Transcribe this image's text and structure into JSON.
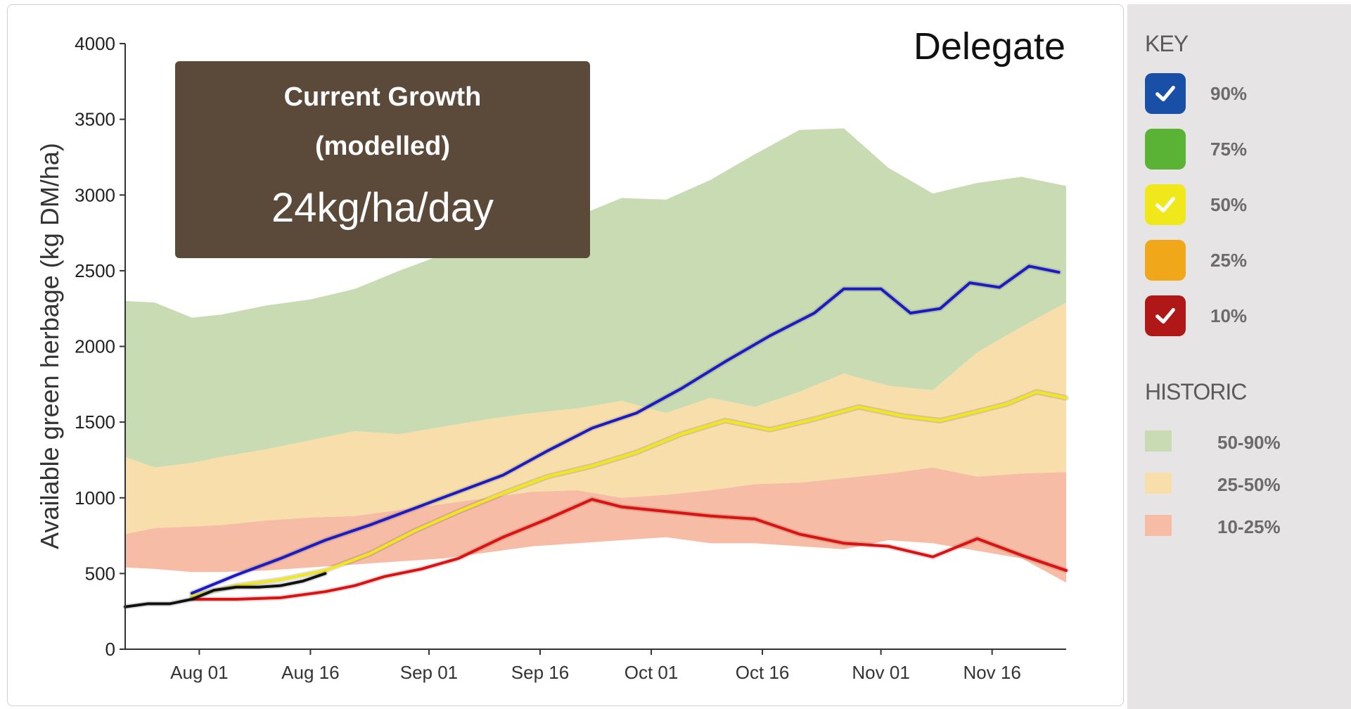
{
  "key": {
    "heading": "KEY",
    "items": [
      {
        "label": "90%",
        "color": "#1a4fa8",
        "checked": true,
        "icon": "check-icon"
      },
      {
        "label": "75%",
        "color": "#5bb336",
        "checked": false,
        "icon": ""
      },
      {
        "label": "50%",
        "color": "#f0e81a",
        "checked": true,
        "icon": "check-icon"
      },
      {
        "label": "25%",
        "color": "#f0a81a",
        "checked": false,
        "icon": ""
      },
      {
        "label": "10%",
        "color": "#b01818",
        "checked": true,
        "icon": "check-icon"
      }
    ],
    "historic_heading": "HISTORIC",
    "historic": [
      {
        "label": "50-90%",
        "color": "#c9dbb3"
      },
      {
        "label": "25-50%",
        "color": "#f8deaa"
      },
      {
        "label": "10-25%",
        "color": "#f6bca6"
      }
    ]
  },
  "growth_box": {
    "title": "Current Growth",
    "subtitle": "(modelled)",
    "value": "24kg/ha/day"
  },
  "chart_data": {
    "type": "line",
    "title": "Delegate",
    "ylabel": "Available green herbage (kg DM/ha)",
    "xlabel": "",
    "ylim": [
      0,
      4000
    ],
    "yticks": [
      0,
      500,
      1000,
      1500,
      2000,
      2500,
      3000,
      3500,
      4000
    ],
    "xlim": [
      "2024-07-22",
      "2024-11-26"
    ],
    "xticks": [
      {
        "label": "Aug 01",
        "date": "2024-08-01"
      },
      {
        "label": "Aug 16",
        "date": "2024-08-16"
      },
      {
        "label": "Sep 01",
        "date": "2024-09-01"
      },
      {
        "label": "Sep 16",
        "date": "2024-09-16"
      },
      {
        "label": "Oct 01",
        "date": "2024-10-01"
      },
      {
        "label": "Oct 16",
        "date": "2024-10-16"
      },
      {
        "label": "Nov 01",
        "date": "2024-11-01"
      },
      {
        "label": "Nov 16",
        "date": "2024-11-16"
      }
    ],
    "x": [
      "2024-07-22",
      "2024-07-26",
      "2024-07-31",
      "2024-08-04",
      "2024-08-10",
      "2024-08-16",
      "2024-08-22",
      "2024-08-28",
      "2024-09-03",
      "2024-09-09",
      "2024-09-15",
      "2024-09-21",
      "2024-09-27",
      "2024-10-03",
      "2024-10-09",
      "2024-10-15",
      "2024-10-21",
      "2024-10-27",
      "2024-11-02",
      "2024-11-08",
      "2024-11-14",
      "2024-11-20",
      "2024-11-26"
    ],
    "bands": [
      {
        "name": "50-90%",
        "color": "#c9dbb3",
        "lower": [
          1270,
          1200,
          1230,
          1270,
          1320,
          1380,
          1440,
          1420,
          1470,
          1520,
          1560,
          1590,
          1640,
          1560,
          1660,
          1600,
          1700,
          1820,
          1740,
          1710,
          1960,
          2130,
          2290
        ],
        "upper": [
          2300,
          2290,
          2190,
          2210,
          2270,
          2310,
          2380,
          2500,
          2610,
          2720,
          2820,
          2860,
          2980,
          2970,
          3100,
          3270,
          3430,
          3440,
          3180,
          3010,
          3080,
          3120,
          3060
        ]
      },
      {
        "name": "25-50%",
        "color": "#f8deaa",
        "lower": [
          760,
          800,
          810,
          820,
          850,
          870,
          880,
          920,
          960,
          1000,
          1040,
          1050,
          1000,
          1020,
          1050,
          1090,
          1100,
          1130,
          1160,
          1200,
          1140,
          1160,
          1170
        ],
        "upper": [
          1270,
          1200,
          1230,
          1270,
          1320,
          1380,
          1440,
          1420,
          1470,
          1520,
          1560,
          1590,
          1640,
          1560,
          1660,
          1600,
          1700,
          1820,
          1740,
          1710,
          1960,
          2130,
          2290
        ]
      },
      {
        "name": "10-25%",
        "color": "#f6bca6",
        "lower": [
          540,
          530,
          510,
          510,
          520,
          540,
          560,
          580,
          600,
          640,
          680,
          700,
          720,
          740,
          700,
          700,
          680,
          660,
          720,
          700,
          650,
          600,
          440
        ],
        "upper": [
          760,
          800,
          810,
          820,
          850,
          870,
          880,
          920,
          960,
          1000,
          1040,
          1050,
          1000,
          1020,
          1050,
          1090,
          1100,
          1130,
          1160,
          1200,
          1140,
          1160,
          1170
        ]
      }
    ],
    "series": [
      {
        "name": "90%",
        "color": "#1a1ac8",
        "x": [
          "2024-07-31",
          "2024-08-06",
          "2024-08-12",
          "2024-08-18",
          "2024-08-24",
          "2024-08-30",
          "2024-09-05",
          "2024-09-11",
          "2024-09-17",
          "2024-09-23",
          "2024-09-29",
          "2024-10-05",
          "2024-10-11",
          "2024-10-17",
          "2024-10-23",
          "2024-10-27",
          "2024-11-01",
          "2024-11-05",
          "2024-11-09",
          "2024-11-13",
          "2024-11-17",
          "2024-11-21",
          "2024-11-25"
        ],
        "values": [
          370,
          490,
          600,
          720,
          820,
          930,
          1040,
          1150,
          1310,
          1460,
          1560,
          1720,
          1900,
          2070,
          2220,
          2380,
          2380,
          2220,
          2250,
          2420,
          2390,
          2530,
          2490
        ]
      },
      {
        "name": "50%",
        "color": "#f0e81a",
        "x": [
          "2024-07-31",
          "2024-08-06",
          "2024-08-12",
          "2024-08-18",
          "2024-08-24",
          "2024-08-30",
          "2024-09-05",
          "2024-09-11",
          "2024-09-17",
          "2024-09-23",
          "2024-09-29",
          "2024-10-05",
          "2024-10-11",
          "2024-10-17",
          "2024-10-23",
          "2024-10-29",
          "2024-11-04",
          "2024-11-09",
          "2024-11-14",
          "2024-11-18",
          "2024-11-22",
          "2024-11-26"
        ],
        "values": [
          350,
          420,
          460,
          520,
          630,
          780,
          910,
          1030,
          1140,
          1210,
          1300,
          1420,
          1510,
          1450,
          1520,
          1600,
          1540,
          1510,
          1570,
          1620,
          1700,
          1660
        ]
      },
      {
        "name": "10%",
        "color": "#e01010",
        "x": [
          "2024-07-31",
          "2024-08-06",
          "2024-08-12",
          "2024-08-18",
          "2024-08-22",
          "2024-08-26",
          "2024-08-31",
          "2024-09-05",
          "2024-09-11",
          "2024-09-17",
          "2024-09-23",
          "2024-09-27",
          "2024-10-03",
          "2024-10-09",
          "2024-10-15",
          "2024-10-21",
          "2024-10-27",
          "2024-11-02",
          "2024-11-08",
          "2024-11-14",
          "2024-11-20",
          "2024-11-26"
        ],
        "values": [
          330,
          330,
          340,
          380,
          420,
          480,
          530,
          600,
          740,
          860,
          990,
          940,
          910,
          880,
          860,
          760,
          700,
          680,
          610,
          730,
          620,
          520
        ]
      },
      {
        "name": "Current",
        "color": "#111111",
        "x": [
          "2024-07-22",
          "2024-07-25",
          "2024-07-28",
          "2024-07-31",
          "2024-08-03",
          "2024-08-06",
          "2024-08-09",
          "2024-08-12",
          "2024-08-15",
          "2024-08-18"
        ],
        "values": [
          280,
          300,
          300,
          330,
          390,
          410,
          410,
          420,
          450,
          500
        ]
      }
    ]
  }
}
